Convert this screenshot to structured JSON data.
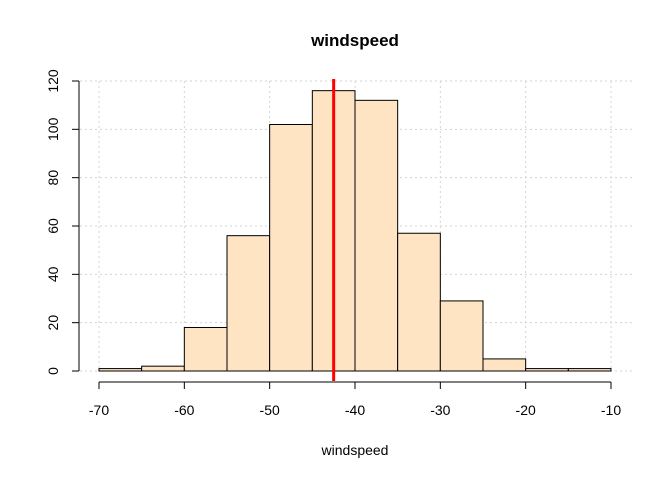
{
  "chart_data": {
    "type": "bar",
    "title": "windspeed",
    "xlabel": "windspeed",
    "ylabel": "",
    "bins": [
      {
        "start": -70,
        "end": -65,
        "count": 1
      },
      {
        "start": -65,
        "end": -60,
        "count": 2
      },
      {
        "start": -60,
        "end": -55,
        "count": 18
      },
      {
        "start": -55,
        "end": -50,
        "count": 56
      },
      {
        "start": -50,
        "end": -45,
        "count": 102
      },
      {
        "start": -45,
        "end": -40,
        "count": 116
      },
      {
        "start": -40,
        "end": -35,
        "count": 112
      },
      {
        "start": -35,
        "end": -30,
        "count": 57
      },
      {
        "start": -30,
        "end": -25,
        "count": 29
      },
      {
        "start": -25,
        "end": -20,
        "count": 5
      },
      {
        "start": -20,
        "end": -15,
        "count": 1
      },
      {
        "start": -15,
        "end": -10,
        "count": 1
      }
    ],
    "xlim": [
      -70,
      -10
    ],
    "ylim": [
      0,
      120
    ],
    "xticks": [
      "-70",
      "-60",
      "-50",
      "-40",
      "-30",
      "-20",
      "-10"
    ],
    "yticks": [
      "0",
      "20",
      "40",
      "60",
      "80",
      "100",
      "120"
    ],
    "reference_line": {
      "x": -42.5,
      "color": "#ff0000"
    },
    "bar_color": "#ffe4c4",
    "grid": true
  }
}
